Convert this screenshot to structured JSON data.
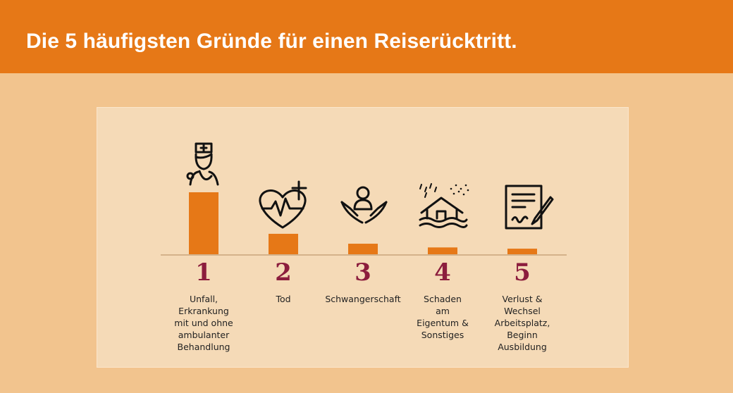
{
  "header": {
    "title": "Die 5 häufigsten Gründe für einen Reiserücktritt."
  },
  "colors": {
    "header": "#e67817",
    "bar": "#e67817",
    "rank": "#8c1d3d",
    "panel": "#f5dab7",
    "background": "#f2c48e"
  },
  "chart_data": {
    "type": "bar",
    "categories": [
      "1",
      "2",
      "3",
      "4",
      "5"
    ],
    "labels": [
      "Unfall,\nErkrankung\nmit und ohne\nambulanter\nBehandlung",
      "Tod",
      "Schwangerschaft",
      "Schaden\nam\nEigentum &\nSonstiges",
      "Verlust &\nWechsel\nArbeitsplatz,\nBeginn\nAusbildung"
    ],
    "values": [
      100,
      33,
      17,
      11,
      9
    ],
    "icons": [
      "doctor-icon",
      "heart-cross-icon",
      "hands-baby-icon",
      "flooded-house-icon",
      "signed-document-icon"
    ],
    "ylim": [
      0,
      100
    ]
  }
}
